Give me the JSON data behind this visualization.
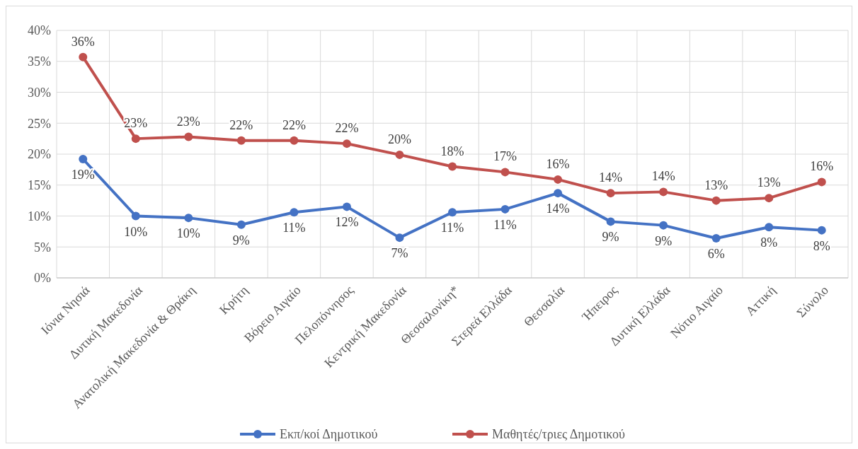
{
  "chart_data": {
    "type": "line",
    "categories": [
      "Ιόνια Νησιά",
      "Δυτική Μακεδονία",
      "Ανατολική Μακεδονία & Θράκη",
      "Κρήτη",
      "Βόρειο Αιγαίο",
      "Πελοπόννησος",
      "Κεντρική Μακεδονία",
      "Θεσσαλονίκη*",
      "Στερεά Ελλάδα",
      "Θεσσαλία",
      "Ήπειρος",
      "Δυτική Ελλάδα",
      "Νότιο Αιγαίο",
      "Αττική",
      "Σύνολο"
    ],
    "series": [
      {
        "name": "Εκπ/κοί Δημοτικού",
        "color": "#4472c4",
        "values": [
          19.2,
          10.0,
          9.7,
          8.6,
          10.6,
          11.5,
          6.5,
          10.6,
          11.1,
          13.7,
          9.1,
          8.5,
          6.4,
          8.2,
          7.7
        ],
        "value_labels": [
          "19%",
          "10%",
          "10%",
          "9%",
          "11%",
          "12%",
          "7%",
          "11%",
          "11%",
          "14%",
          "9%",
          "9%",
          "6%",
          "8%",
          "8%"
        ]
      },
      {
        "name": "Μαθητές/τριες Δημοτικού",
        "color": "#c0504d",
        "values": [
          35.7,
          22.5,
          22.8,
          22.2,
          22.2,
          21.7,
          19.9,
          18.0,
          17.1,
          15.9,
          13.7,
          13.9,
          12.5,
          12.9,
          15.5
        ],
        "value_labels": [
          "36%",
          "23%",
          "23%",
          "22%",
          "22%",
          "22%",
          "20%",
          "18%",
          "17%",
          "16%",
          "14%",
          "14%",
          "13%",
          "13%",
          "16%"
        ]
      }
    ],
    "ylim": [
      0,
      40
    ],
    "yticks": [
      {
        "value": 0,
        "label": "0%"
      },
      {
        "value": 5,
        "label": "5%"
      },
      {
        "value": 10,
        "label": "10%"
      },
      {
        "value": 15,
        "label": "15%"
      },
      {
        "value": 20,
        "label": "20%"
      },
      {
        "value": 25,
        "label": "25%"
      },
      {
        "value": 30,
        "label": "30%"
      },
      {
        "value": 35,
        "label": "35%"
      },
      {
        "value": 40,
        "label": "40%"
      }
    ],
    "grid": true,
    "legend": "bottom",
    "marker": "circle",
    "line_style": "solid"
  }
}
